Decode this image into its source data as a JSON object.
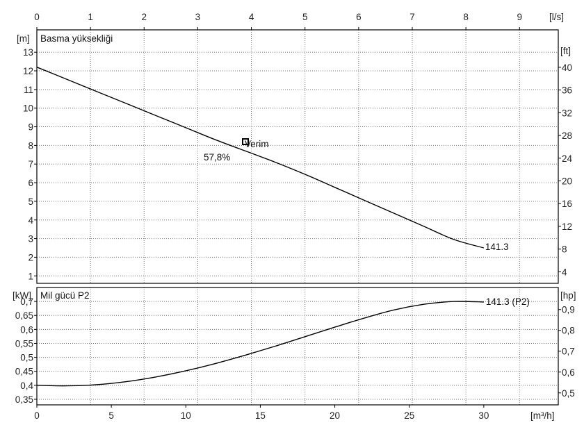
{
  "chart_data": [
    {
      "type": "line",
      "title": "Basma yüksekliği",
      "x_unit_top": "[l/s]",
      "x_ticks_top": [
        "0",
        "1",
        "2",
        "3",
        "4",
        "5",
        "6",
        "7",
        "8",
        "9"
      ],
      "y_unit_left": "[m]",
      "y_ticks_left": [
        "1",
        "2",
        "3",
        "4",
        "5",
        "6",
        "7",
        "8",
        "9",
        "10",
        "11",
        "12",
        "13"
      ],
      "y_unit_right": "[ft]",
      "y_ticks_right": [
        "4",
        "8",
        "12",
        "16",
        "20",
        "24",
        "28",
        "32",
        "36",
        "40"
      ],
      "xlim": [
        0,
        35
      ],
      "ylim": [
        0.6,
        14.2
      ],
      "grid": true,
      "series": [
        {
          "label": "141.3",
          "x": [
            0,
            2,
            4,
            6,
            8,
            10,
            12,
            14,
            16,
            18,
            20,
            22,
            24,
            26,
            28,
            30
          ],
          "y": [
            12.2,
            11.55,
            10.9,
            10.25,
            9.6,
            8.95,
            8.3,
            7.7,
            7.1,
            6.45,
            5.75,
            5.05,
            4.35,
            3.65,
            2.95,
            2.5
          ]
        }
      ],
      "efficiency_point": {
        "x": 14,
        "y": 8.2,
        "label": "Verim",
        "value": "57,8%"
      }
    },
    {
      "type": "line",
      "title": "Mil gücü P2",
      "x_unit_bottom": "[m³/h]",
      "x_ticks_bottom": [
        "0",
        "5",
        "10",
        "15",
        "20",
        "25",
        "30"
      ],
      "y_unit_left": "[kW]",
      "y_ticks_left": [
        "0,35",
        "0,4",
        "0,45",
        "0,5",
        "0,55",
        "0,6",
        "0,65",
        "0,7"
      ],
      "y_unit_right": "[hp]",
      "y_ticks_right": [
        "0,5",
        "0,6",
        "0,7",
        "0,8",
        "0,9"
      ],
      "xlim": [
        0,
        35
      ],
      "ylim": [
        0.33,
        0.75
      ],
      "grid": true,
      "series": [
        {
          "label": "141.3 (P2)",
          "x": [
            0,
            2,
            4,
            6,
            8,
            10,
            12,
            14,
            16,
            18,
            20,
            22,
            24,
            26,
            28,
            30
          ],
          "y": [
            0.4,
            0.398,
            0.402,
            0.413,
            0.43,
            0.452,
            0.478,
            0.508,
            0.54,
            0.574,
            0.608,
            0.641,
            0.67,
            0.69,
            0.7,
            0.698
          ]
        }
      ]
    }
  ]
}
